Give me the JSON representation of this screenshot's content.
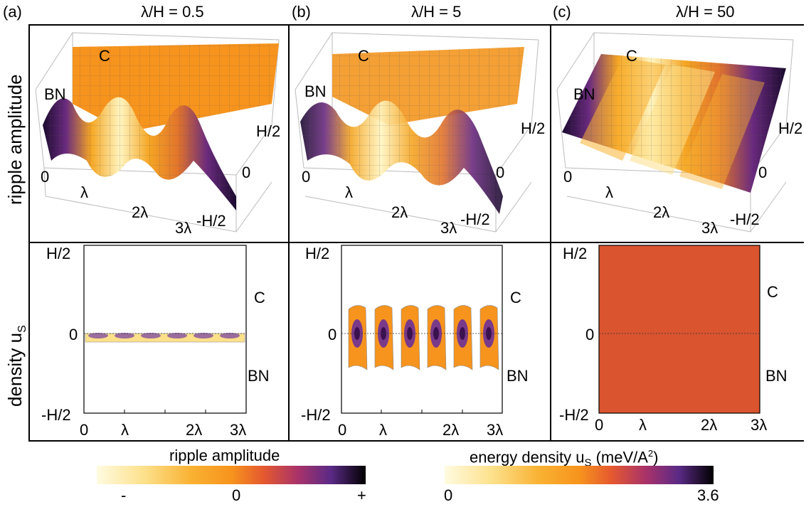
{
  "panels": [
    {
      "tag": "(a)",
      "title": "λ/H = 0.5"
    },
    {
      "tag": "(b)",
      "title": "λ/H = 5"
    },
    {
      "tag": "(c)",
      "title": "λ/H = 50"
    }
  ],
  "row_labels": {
    "top": "ripple amplitude",
    "bottom_main": "density u",
    "bottom_sub": "S"
  },
  "surface_labels": {
    "c": "C",
    "bn": "BN",
    "zero_x": "0",
    "lambda": "λ",
    "two_lambda": "2λ",
    "three_lambda": "3λ",
    "h_half": "H/2",
    "zero_y": "0",
    "neg_h_half": "-H/2"
  },
  "density_labels": {
    "y_top": "H/2",
    "y_mid": "0",
    "y_bot": "-H/2",
    "x0": "0",
    "x1": "λ",
    "x2": "2λ",
    "x3": "3λ",
    "c": "C",
    "bn": "BN"
  },
  "colorbars": {
    "ripple": {
      "title": "ripple amplitude",
      "min": "-",
      "mid": "0",
      "max": "+"
    },
    "energy": {
      "title_main": "energy density u",
      "title_sub": "S",
      "title_unit": " (meV/A",
      "title_sup": "2",
      "title_end": ")",
      "min": "0",
      "max": "3.6"
    }
  },
  "colors": {
    "inferno_light": "#fffbe0",
    "orange": "#f7941d",
    "red_orange": "#d9542f",
    "purple": "#5b2a86",
    "black": "#000000"
  }
}
